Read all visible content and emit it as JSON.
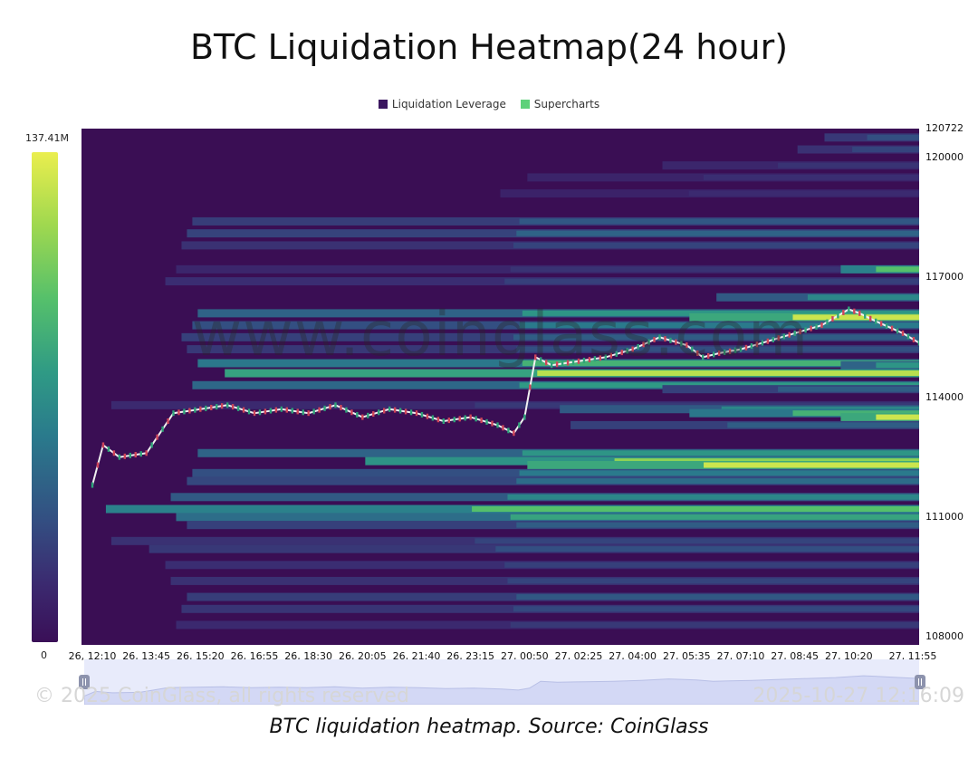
{
  "chart_data": {
    "type": "heatmap",
    "title": "BTC Liquidation Heatmap(24 hour)",
    "legend": {
      "items": [
        {
          "label": "Liquidation Leverage",
          "color": "#3b1760"
        },
        {
          "label": "Supercharts",
          "color": "#5ed17a"
        }
      ],
      "placement": "top"
    },
    "colorbar": {
      "max_label": "137.41M",
      "min_label": "0",
      "max_value": 137.41,
      "min_value": 0,
      "unit": "M"
    },
    "colors": {
      "background": "#3a0e54",
      "low": "#44106a",
      "mid": "#2b8c8e",
      "high": "#e9ef52"
    },
    "y_axis": {
      "ticks": [
        {
          "label": "120722",
          "value": 120722
        },
        {
          "label": "120000",
          "value": 120000
        },
        {
          "label": "117000",
          "value": 117000
        },
        {
          "label": "114000",
          "value": 114000
        },
        {
          "label": "111000",
          "value": 111000
        },
        {
          "label": "108000",
          "value": 108000
        }
      ],
      "range": [
        107800,
        120722
      ]
    },
    "x_axis": {
      "ticks": [
        "26, 12:10",
        "26, 13:45",
        "26, 15:20",
        "26, 16:55",
        "26, 18:30",
        "26, 20:05",
        "26, 21:40",
        "26, 23:15",
        "27, 00:50",
        "27, 02:25",
        "27, 04:00",
        "27, 05:35",
        "27, 07:10",
        "27, 08:45",
        "27, 10:20",
        "27, 11:55"
      ]
    },
    "price_series": {
      "name": "",
      "x_ticks_index": [
        0,
        0.2,
        0.5,
        1,
        1.5,
        2,
        2.5,
        3,
        3.5,
        4,
        4.5,
        5,
        5.5,
        6,
        6.5,
        7,
        7.5,
        7.8,
        8,
        8.2,
        8.5,
        9,
        9.5,
        10,
        10.5,
        11,
        11.3,
        11.6,
        12,
        12.5,
        13,
        13.5,
        14,
        14.2,
        14.5,
        15,
        15.5
      ],
      "values": [
        111800,
        112800,
        112500,
        112600,
        113600,
        113700,
        113800,
        113600,
        113700,
        113600,
        113800,
        113500,
        113700,
        113600,
        113400,
        113500,
        113300,
        113100,
        113500,
        115000,
        114800,
        114900,
        115000,
        115200,
        115500,
        115300,
        115000,
        115100,
        115200,
        115400,
        115600,
        115800,
        116200,
        116100,
        115900,
        115600,
        115200
      ]
    },
    "bands": [
      {
        "y": 120500,
        "start": 13.5,
        "intensity": 0.35
      },
      {
        "y": 120200,
        "start": 13.0,
        "intensity": 0.3
      },
      {
        "y": 119800,
        "start": 10.5,
        "intensity": 0.22
      },
      {
        "y": 119500,
        "start": 8.0,
        "intensity": 0.2
      },
      {
        "y": 119100,
        "start": 7.5,
        "intensity": 0.18
      },
      {
        "y": 118400,
        "start": 1.8,
        "intensity": 0.38
      },
      {
        "y": 118100,
        "start": 1.7,
        "intensity": 0.42
      },
      {
        "y": 117800,
        "start": 1.6,
        "intensity": 0.3
      },
      {
        "y": 117200,
        "start": 1.5,
        "intensity": 0.22
      },
      {
        "y": 116900,
        "start": 1.3,
        "intensity": 0.28
      },
      {
        "y": 117200,
        "start": 13.8,
        "intensity": 0.75
      },
      {
        "y": 116500,
        "start": 11.5,
        "intensity": 0.55
      },
      {
        "y": 116100,
        "start": 1.9,
        "intensity": 0.6
      },
      {
        "y": 116000,
        "start": 11.0,
        "intensity": 0.95
      },
      {
        "y": 115800,
        "start": 1.8,
        "intensity": 0.5
      },
      {
        "y": 115500,
        "start": 1.6,
        "intensity": 0.4
      },
      {
        "y": 115200,
        "start": 1.7,
        "intensity": 0.35
      },
      {
        "y": 114850,
        "start": 1.9,
        "intensity": 0.7
      },
      {
        "y": 114600,
        "start": 2.4,
        "intensity": 0.92
      },
      {
        "y": 114300,
        "start": 1.8,
        "intensity": 0.62
      },
      {
        "y": 114800,
        "start": 13.8,
        "intensity": 0.6
      },
      {
        "y": 114200,
        "start": 10.5,
        "intensity": 0.4
      },
      {
        "y": 113800,
        "start": 0.3,
        "intensity": 0.25
      },
      {
        "y": 113700,
        "start": 8.6,
        "intensity": 0.55
      },
      {
        "y": 113600,
        "start": 11.0,
        "intensity": 0.7
      },
      {
        "y": 113500,
        "start": 13.8,
        "intensity": 0.95
      },
      {
        "y": 113300,
        "start": 8.8,
        "intensity": 0.4
      },
      {
        "y": 112600,
        "start": 1.9,
        "intensity": 0.6
      },
      {
        "y": 112400,
        "start": 5.0,
        "intensity": 0.85
      },
      {
        "y": 112300,
        "start": 8.0,
        "intensity": 0.95
      },
      {
        "y": 112100,
        "start": 1.8,
        "intensity": 0.5
      },
      {
        "y": 111900,
        "start": 1.7,
        "intensity": 0.45
      },
      {
        "y": 111500,
        "start": 1.4,
        "intensity": 0.55
      },
      {
        "y": 111200,
        "start": 0.2,
        "intensity": 0.75
      },
      {
        "y": 111000,
        "start": 1.5,
        "intensity": 0.65
      },
      {
        "y": 110800,
        "start": 1.7,
        "intensity": 0.4
      },
      {
        "y": 110400,
        "start": 0.3,
        "intensity": 0.3
      },
      {
        "y": 110200,
        "start": 1.0,
        "intensity": 0.35
      },
      {
        "y": 109800,
        "start": 1.3,
        "intensity": 0.28
      },
      {
        "y": 109400,
        "start": 1.4,
        "intensity": 0.3
      },
      {
        "y": 109000,
        "start": 1.7,
        "intensity": 0.38
      },
      {
        "y": 108700,
        "start": 1.6,
        "intensity": 0.32
      },
      {
        "y": 108300,
        "start": 1.5,
        "intensity": 0.25
      }
    ],
    "grid": false
  },
  "watermark": "www.coinglass.com",
  "footer": {
    "copyright": "© 2025 CoinGlass, all rights reserved",
    "timestamp": "2025-10-27 12:16:09"
  },
  "caption": "BTC liquidation heatmap. Source: CoinGlass"
}
